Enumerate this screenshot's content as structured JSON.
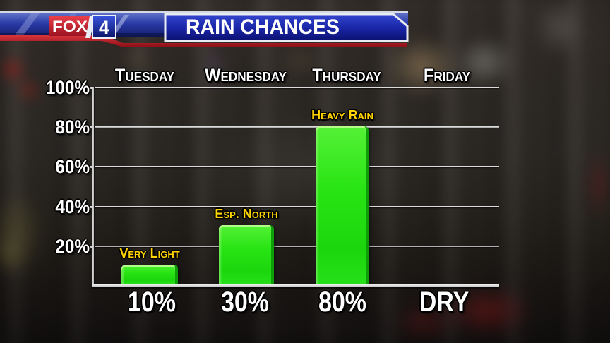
{
  "header": {
    "station_name": "FOX",
    "station_number": "4",
    "title": "RAIN CHANCES"
  },
  "colors": {
    "banner_blue": "#1f2daa",
    "accent_red": "#b01820",
    "silver_edge": "#d6dbe6",
    "bar_green": "#24e312",
    "bar_edge_green": "#0e9e07",
    "note_yellow": "#ffd400",
    "text_white": "#ffffff"
  },
  "y_axis_labels": [
    "100%",
    "80%",
    "60%",
    "40%",
    "20%"
  ],
  "columns": [
    {
      "day": "Tuesday",
      "value": "10%",
      "note": "Very Light"
    },
    {
      "day": "Wednesday",
      "value": "30%",
      "note": "Esp. North"
    },
    {
      "day": "Thursday",
      "value": "80%",
      "note": "Heavy Rain"
    },
    {
      "day": "Friday",
      "value": "DRY",
      "note": ""
    }
  ],
  "chart_data": {
    "type": "bar",
    "title": "RAIN CHANCES",
    "categories": [
      "Tuesday",
      "Wednesday",
      "Thursday",
      "Friday"
    ],
    "values": [
      10,
      30,
      80,
      0
    ],
    "value_labels": [
      "10%",
      "30%",
      "80%",
      "DRY"
    ],
    "annotations": [
      "Very Light",
      "Esp. North",
      "Heavy Rain",
      ""
    ],
    "xlabel": "",
    "ylabel": "",
    "ylim": [
      0,
      100
    ],
    "ytick_labels": [
      "100%",
      "80%",
      "60%",
      "40%",
      "20%"
    ],
    "grid": true,
    "legend": false,
    "bar_color": "#24e312",
    "annotation_color": "#ffd400"
  }
}
